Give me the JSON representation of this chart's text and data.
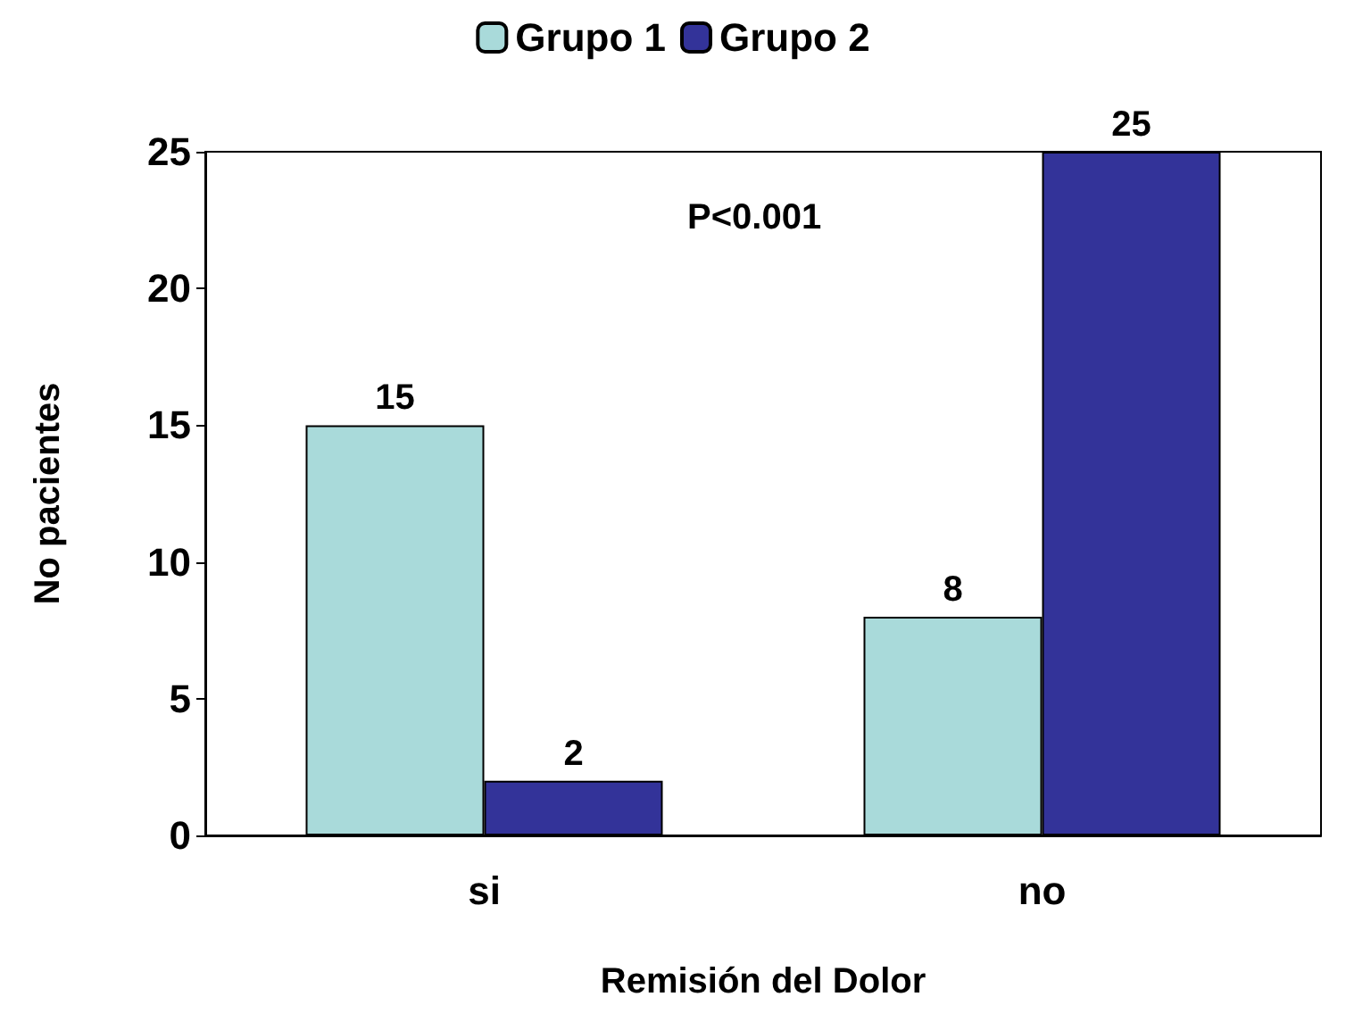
{
  "chart_data": {
    "type": "bar",
    "xlabel": "Remisión del Dolor",
    "ylabel": "No pacientes",
    "categories": [
      "si",
      "no"
    ],
    "series": [
      {
        "name": "Grupo 1",
        "color": "#a9dada",
        "values": [
          15,
          8
        ]
      },
      {
        "name": "Grupo 2",
        "color": "#333399",
        "values": [
          2,
          25
        ]
      }
    ],
    "ylim": [
      0,
      25
    ],
    "yticks": [
      0,
      5,
      10,
      15,
      20,
      25
    ],
    "grid": false,
    "legend": "top",
    "data_labels": true,
    "annotations": [
      "P<0.001"
    ]
  }
}
